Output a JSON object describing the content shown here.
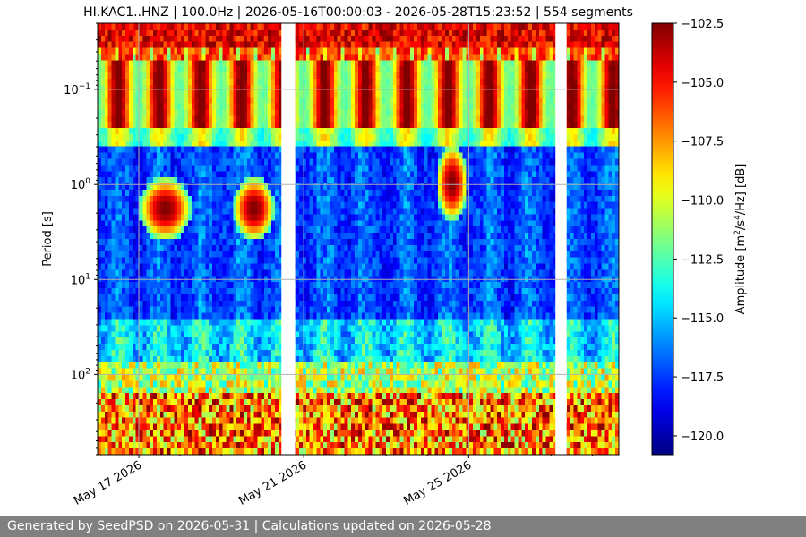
{
  "chart_data": {
    "type": "heatmap",
    "title": "HI.KAC1..HNZ | 100.0Hz | 2026-05-16T00:00:03 - 2026-05-28T15:23:52 | 554 segments",
    "ylabel": "Period [s]",
    "y_scale": "log",
    "y_inverted": true,
    "y_range": [
      0.02,
      700
    ],
    "y_ticks": [
      {
        "value": 0.1,
        "label": "10^{-1}"
      },
      {
        "value": 1,
        "label": "10^{0}"
      },
      {
        "value": 10,
        "label": "10^{1}"
      },
      {
        "value": 100,
        "label": "10^{2}"
      }
    ],
    "x_range_days": [
      "2026-05-16T00:00:03",
      "2026-05-28T15:23:52"
    ],
    "x_ticks": [
      {
        "date": "2026-05-17",
        "label": "May 17 2026"
      },
      {
        "date": "2026-05-21",
        "label": "May 21 2026"
      },
      {
        "date": "2026-05-25",
        "label": "May 25 2026"
      }
    ],
    "grid": true,
    "colormap": "jet",
    "colorbar": {
      "label": "Amplitude [m^2/s^4/Hz] [dB]",
      "range": [
        -120.8,
        -102.5
      ],
      "ticks": [
        -102.5,
        -105.0,
        -107.5,
        -110.0,
        -112.5,
        -115.0,
        -117.5,
        -120.0
      ],
      "tick_labels": [
        "−102.5",
        "−105.0",
        "−107.5",
        "−110.0",
        "−112.5",
        "−115.0",
        "−117.5",
        "−120.0"
      ]
    },
    "data_gaps": [
      [
        "2026-05-20T11:00",
        "2026-05-20T19:00"
      ],
      [
        "2026-05-27T02:30",
        "2026-05-27T09:00"
      ]
    ]
  },
  "footer": {
    "text": "Generated by SeedPSD on 2026-05-31 | Calculations updated on 2026-05-28"
  }
}
